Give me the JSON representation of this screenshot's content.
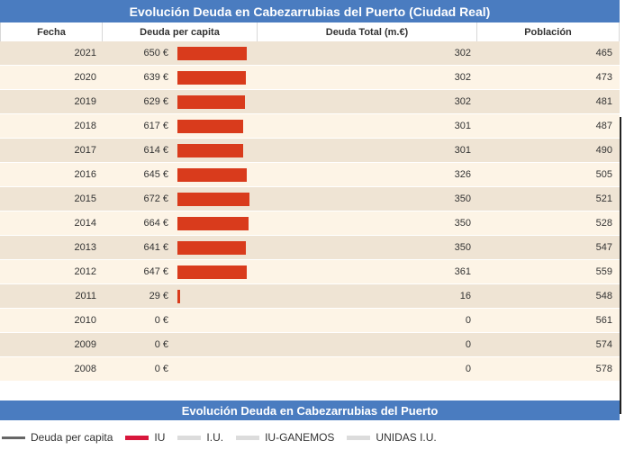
{
  "title": "Evolución Deuda en Cabezarrubias del Puerto (Ciudad Real)",
  "columns": [
    "Fecha",
    "Deuda per capita",
    "Deuda Total (m.€)",
    "Población"
  ],
  "debt_max": 672,
  "rows": [
    {
      "year": "2021",
      "per_capita": "650 €",
      "per_capita_value": 650,
      "total": "302",
      "population": "465"
    },
    {
      "year": "2020",
      "per_capita": "639 €",
      "per_capita_value": 639,
      "total": "302",
      "population": "473"
    },
    {
      "year": "2019",
      "per_capita": "629 €",
      "per_capita_value": 629,
      "total": "302",
      "population": "481"
    },
    {
      "year": "2018",
      "per_capita": "617 €",
      "per_capita_value": 617,
      "total": "301",
      "population": "487"
    },
    {
      "year": "2017",
      "per_capita": "614 €",
      "per_capita_value": 614,
      "total": "301",
      "population": "490"
    },
    {
      "year": "2016",
      "per_capita": "645 €",
      "per_capita_value": 645,
      "total": "326",
      "population": "505"
    },
    {
      "year": "2015",
      "per_capita": "672 €",
      "per_capita_value": 672,
      "total": "350",
      "population": "521"
    },
    {
      "year": "2014",
      "per_capita": "664 €",
      "per_capita_value": 664,
      "total": "350",
      "population": "528"
    },
    {
      "year": "2013",
      "per_capita": "641 €",
      "per_capita_value": 641,
      "total": "350",
      "population": "547"
    },
    {
      "year": "2012",
      "per_capita": "647 €",
      "per_capita_value": 647,
      "total": "361",
      "population": "559"
    },
    {
      "year": "2011",
      "per_capita": "29 €",
      "per_capita_value": 29,
      "total": "16",
      "population": "548"
    },
    {
      "year": "2010",
      "per_capita": "0 €",
      "per_capita_value": 0,
      "total": "0",
      "population": "561"
    },
    {
      "year": "2009",
      "per_capita": "0 €",
      "per_capita_value": 0,
      "total": "0",
      "population": "574"
    },
    {
      "year": "2008",
      "per_capita": "0 €",
      "per_capita_value": 0,
      "total": "0",
      "population": "578"
    }
  ],
  "chart_title": "Evolución Deuda en Cabezarrubias del Puerto",
  "legend": [
    {
      "label": "Deuda per capita",
      "kind": "line",
      "color": "#666666"
    },
    {
      "label": "IU",
      "kind": "swatch",
      "color": "#d8173c"
    },
    {
      "label": "I.U.",
      "kind": "swatch",
      "color": "#dcdcdc"
    },
    {
      "label": "IU-GANEMOS",
      "kind": "swatch",
      "color": "#dcdcdc"
    },
    {
      "label": "UNIDAS I.U.",
      "kind": "swatch",
      "color": "#dcdcdc"
    }
  ],
  "bar_color": "#d93b1c"
}
